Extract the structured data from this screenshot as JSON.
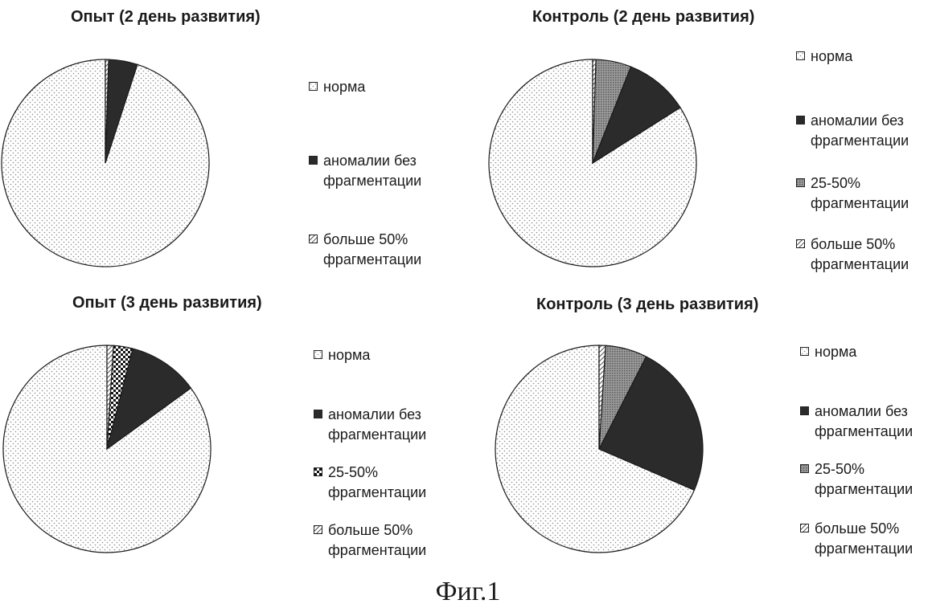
{
  "chart_data": [
    {
      "type": "pie",
      "title": "Опыт (2 день развития)",
      "slices": [
        {
          "label": "норма",
          "value": 95.0,
          "pattern": "dots"
        },
        {
          "label": "аномалии без\nфрагментации",
          "value": 4.5,
          "pattern": "solid"
        },
        {
          "label": "больше 50%\nфрагментации",
          "value": 0.5,
          "pattern": "hatch"
        }
      ],
      "legend": "right"
    },
    {
      "type": "pie",
      "title": "Контроль (2 день развития)",
      "slices": [
        {
          "label": "норма",
          "value": 84.0,
          "pattern": "dots"
        },
        {
          "label": "аномалии без\nфрагментации",
          "value": 10.0,
          "pattern": "solid"
        },
        {
          "label": "25-50%\nфрагментации",
          "value": 5.5,
          "pattern": "crosshatch"
        },
        {
          "label": "больше 50%\nфрагментации",
          "value": 0.5,
          "pattern": "hatch"
        }
      ],
      "legend": "right"
    },
    {
      "type": "pie",
      "title": "Опыт (3 день развития)",
      "slices": [
        {
          "label": "норма",
          "value": 85.0,
          "pattern": "dots"
        },
        {
          "label": "аномалии без\nфрагментации",
          "value": 11.0,
          "pattern": "solid"
        },
        {
          "label": "25-50%\nфрагментации",
          "value": 3.0,
          "pattern": "checker"
        },
        {
          "label": "больше 50%\nфрагментации",
          "value": 1.0,
          "pattern": "hatch"
        }
      ],
      "legend": "right"
    },
    {
      "type": "pie",
      "title": "Контроль (3 день развития)",
      "slices": [
        {
          "label": "норма",
          "value": 68.5,
          "pattern": "dots"
        },
        {
          "label": "аномалии без\nфрагментации",
          "value": 24.0,
          "pattern": "solid"
        },
        {
          "label": "25-50%\nфрагментации",
          "value": 6.5,
          "pattern": "crosshatch"
        },
        {
          "label": "больше 50%\nфрагментации",
          "value": 1.0,
          "pattern": "hatch"
        }
      ],
      "legend": "right"
    }
  ],
  "figure_caption": "Фиг.1",
  "colors": {
    "ink": "#1a1a1a",
    "solid_fill": "#2b2b2b",
    "dot": "#8a8a8a"
  }
}
